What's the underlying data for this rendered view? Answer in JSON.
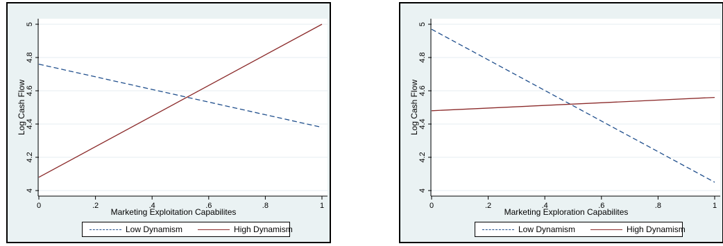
{
  "chart_data": [
    {
      "type": "line",
      "xlabel": "Marketing Exploitation Capabilites",
      "ylabel": "Log Cash Flow",
      "xlim": [
        0,
        1
      ],
      "ylim": [
        4,
        5
      ],
      "xticks": [
        "0",
        ".2",
        ".4",
        ".6",
        ".8",
        "1"
      ],
      "yticks": [
        "4",
        "4.2",
        "4.4",
        "4.6",
        "4.8",
        "5"
      ],
      "grid": true,
      "legend_position": "bottom",
      "series": [
        {
          "name": "Low Dynamism",
          "style": "dashed",
          "color": "#1f4e8c",
          "x": [
            0,
            1
          ],
          "values": [
            4.76,
            4.38
          ]
        },
        {
          "name": "High Dynamism",
          "style": "solid",
          "color": "#8b2a2a",
          "x": [
            0,
            1
          ],
          "values": [
            4.08,
            5.0
          ]
        }
      ]
    },
    {
      "type": "line",
      "xlabel": "Marketing Exploration Capabilites",
      "ylabel": "Log Cash Flow",
      "xlim": [
        0,
        1
      ],
      "ylim": [
        4,
        5
      ],
      "xticks": [
        "0",
        ".2",
        ".4",
        ".6",
        ".8",
        "1"
      ],
      "yticks": [
        "4",
        "4.2",
        "4.4",
        "4.6",
        "4.8",
        "5"
      ],
      "grid": true,
      "legend_position": "bottom",
      "series": [
        {
          "name": "Low Dynamism",
          "style": "dashed",
          "color": "#1f4e8c",
          "x": [
            0,
            1
          ],
          "values": [
            4.97,
            4.05
          ]
        },
        {
          "name": "High Dynamism",
          "style": "solid",
          "color": "#8b2a2a",
          "x": [
            0,
            1
          ],
          "values": [
            4.48,
            4.56
          ]
        }
      ]
    }
  ]
}
